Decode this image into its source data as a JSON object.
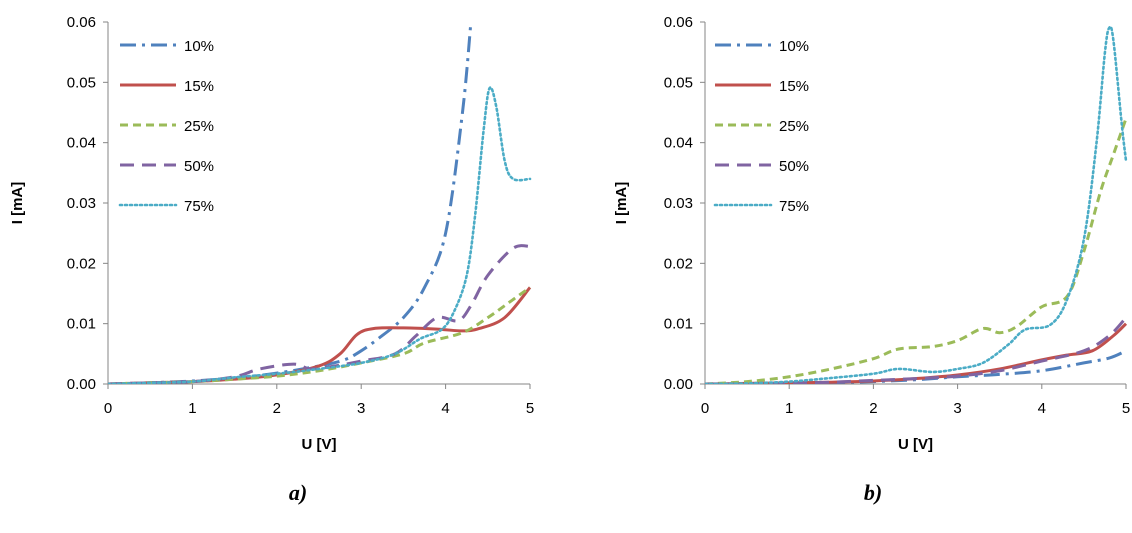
{
  "series_style": {
    "10%": {
      "color": "#4F81BD",
      "dash": "dashdot"
    },
    "15%": {
      "color": "#C0504D",
      "dash": "solid"
    },
    "25%": {
      "color": "#9BBB59",
      "dash": "dash"
    },
    "50%": {
      "color": "#8064A2",
      "dash": "longdash"
    },
    "75%": {
      "color": "#4BACC6",
      "dash": "dot"
    }
  },
  "chart_data": [
    {
      "type": "line",
      "panel_label": "a)",
      "xlabel": "U [V]",
      "ylabel": "I [mA]",
      "xlim": [
        0,
        5
      ],
      "ylim": [
        0,
        0.06
      ],
      "xticks": [
        "0",
        "1",
        "2",
        "3",
        "4",
        "5"
      ],
      "yticks": [
        "0.00",
        "0.01",
        "0.02",
        "0.03",
        "0.04",
        "0.05",
        "0.06"
      ],
      "grid": false,
      "legend": "top-left",
      "series": [
        {
          "name": "10%",
          "points": [
            [
              0,
              0
            ],
            [
              0.5,
              0.0002
            ],
            [
              1,
              0.0005
            ],
            [
              1.5,
              0.001
            ],
            [
              2,
              0.0018
            ],
            [
              2.5,
              0.003
            ],
            [
              2.8,
              0.004
            ],
            [
              3,
              0.0055
            ],
            [
              3.2,
              0.0075
            ],
            [
              3.5,
              0.011
            ],
            [
              3.75,
              0.016
            ],
            [
              4,
              0.025
            ],
            [
              4.2,
              0.045
            ],
            [
              4.3,
              0.06
            ]
          ]
        },
        {
          "name": "15%",
          "points": [
            [
              0,
              0
            ],
            [
              0.5,
              0.0002
            ],
            [
              1,
              0.0004
            ],
            [
              1.5,
              0.0008
            ],
            [
              2,
              0.0015
            ],
            [
              2.5,
              0.003
            ],
            [
              2.75,
              0.005
            ],
            [
              2.95,
              0.0082
            ],
            [
              3.15,
              0.0092
            ],
            [
              3.5,
              0.0093
            ],
            [
              3.9,
              0.0091
            ],
            [
              4.2,
              0.0088
            ],
            [
              4.4,
              0.0092
            ],
            [
              4.7,
              0.011
            ],
            [
              5,
              0.016
            ]
          ]
        },
        {
          "name": "25%",
          "points": [
            [
              0,
              0
            ],
            [
              0.5,
              0.0002
            ],
            [
              1,
              0.0004
            ],
            [
              1.5,
              0.0008
            ],
            [
              2,
              0.0013
            ],
            [
              2.5,
              0.0022
            ],
            [
              3,
              0.0035
            ],
            [
              3.5,
              0.005
            ],
            [
              3.75,
              0.0068
            ],
            [
              4.2,
              0.0085
            ],
            [
              4.5,
              0.011
            ],
            [
              4.8,
              0.014
            ],
            [
              5,
              0.016
            ]
          ]
        },
        {
          "name": "50%",
          "points": [
            [
              0,
              0
            ],
            [
              0.5,
              0.0002
            ],
            [
              1,
              0.0004
            ],
            [
              1.5,
              0.0012
            ],
            [
              1.8,
              0.0025
            ],
            [
              2.2,
              0.0033
            ],
            [
              2.4,
              0.0025
            ],
            [
              2.7,
              0.003
            ],
            [
              3,
              0.0038
            ],
            [
              3.4,
              0.005
            ],
            [
              3.65,
              0.008
            ],
            [
              3.9,
              0.011
            ],
            [
              4.15,
              0.0105
            ],
            [
              4.3,
              0.013
            ],
            [
              4.5,
              0.018
            ],
            [
              4.8,
              0.0225
            ],
            [
              5,
              0.0228
            ]
          ]
        },
        {
          "name": "75%",
          "points": [
            [
              0,
              0
            ],
            [
              0.5,
              0.0002
            ],
            [
              1,
              0.0004
            ],
            [
              1.5,
              0.0011
            ],
            [
              2,
              0.0017
            ],
            [
              2.5,
              0.0025
            ],
            [
              3,
              0.0035
            ],
            [
              3.4,
              0.005
            ],
            [
              3.7,
              0.0075
            ],
            [
              3.95,
              0.009
            ],
            [
              4.1,
              0.012
            ],
            [
              4.25,
              0.018
            ],
            [
              4.35,
              0.028
            ],
            [
              4.45,
              0.042
            ],
            [
              4.52,
              0.049
            ],
            [
              4.6,
              0.046
            ],
            [
              4.7,
              0.037
            ],
            [
              4.8,
              0.034
            ],
            [
              5,
              0.034
            ]
          ]
        }
      ]
    },
    {
      "type": "line",
      "panel_label": "b)",
      "xlabel": "U [V]",
      "ylabel": "I [mA]",
      "xlim": [
        0,
        5
      ],
      "ylim": [
        0,
        0.06
      ],
      "xticks": [
        "0",
        "1",
        "2",
        "3",
        "4",
        "5"
      ],
      "yticks": [
        "0.00",
        "0.01",
        "0.02",
        "0.03",
        "0.04",
        "0.05",
        "0.06"
      ],
      "grid": false,
      "legend": "top-left",
      "series": [
        {
          "name": "10%",
          "points": [
            [
              0,
              0
            ],
            [
              0.5,
              0
            ],
            [
              1,
              0.0001
            ],
            [
              1.5,
              0.0002
            ],
            [
              2,
              0.0004
            ],
            [
              2.5,
              0.0007
            ],
            [
              3,
              0.0012
            ],
            [
              3.5,
              0.0016
            ],
            [
              4,
              0.0022
            ],
            [
              4.5,
              0.0035
            ],
            [
              4.8,
              0.0043
            ],
            [
              5,
              0.0055
            ]
          ]
        },
        {
          "name": "15%",
          "points": [
            [
              0,
              0
            ],
            [
              0.5,
              0.0001
            ],
            [
              1,
              0.0002
            ],
            [
              1.5,
              0.0003
            ],
            [
              2,
              0.0005
            ],
            [
              2.5,
              0.0009
            ],
            [
              3,
              0.0015
            ],
            [
              3.5,
              0.0025
            ],
            [
              4,
              0.004
            ],
            [
              4.3,
              0.0048
            ],
            [
              4.6,
              0.0055
            ],
            [
              4.85,
              0.008
            ],
            [
              5,
              0.01
            ]
          ]
        },
        {
          "name": "25%",
          "points": [
            [
              0,
              0
            ],
            [
              0.5,
              0.0004
            ],
            [
              1,
              0.0012
            ],
            [
              1.5,
              0.0025
            ],
            [
              2,
              0.0042
            ],
            [
              2.3,
              0.0058
            ],
            [
              2.7,
              0.0062
            ],
            [
              3,
              0.0072
            ],
            [
              3.3,
              0.0092
            ],
            [
              3.5,
              0.0085
            ],
            [
              3.7,
              0.0095
            ],
            [
              4,
              0.0128
            ],
            [
              4.3,
              0.0145
            ],
            [
              4.5,
              0.022
            ],
            [
              4.7,
              0.032
            ],
            [
              4.85,
              0.038
            ],
            [
              5,
              0.044
            ]
          ]
        },
        {
          "name": "50%",
          "points": [
            [
              0,
              0
            ],
            [
              0.5,
              0
            ],
            [
              1,
              0.0001
            ],
            [
              1.5,
              0.0003
            ],
            [
              2,
              0.0006
            ],
            [
              2.5,
              0.0009
            ],
            [
              3,
              0.0013
            ],
            [
              3.5,
              0.0022
            ],
            [
              4,
              0.0038
            ],
            [
              4.5,
              0.0055
            ],
            [
              4.8,
              0.008
            ],
            [
              5,
              0.011
            ]
          ]
        },
        {
          "name": "75%",
          "points": [
            [
              0,
              0
            ],
            [
              0.5,
              0.0001
            ],
            [
              1,
              0.0004
            ],
            [
              1.5,
              0.001
            ],
            [
              2,
              0.0017
            ],
            [
              2.3,
              0.0025
            ],
            [
              2.7,
              0.002
            ],
            [
              3,
              0.0025
            ],
            [
              3.3,
              0.0035
            ],
            [
              3.6,
              0.0065
            ],
            [
              3.8,
              0.009
            ],
            [
              4.1,
              0.0098
            ],
            [
              4.3,
              0.014
            ],
            [
              4.5,
              0.024
            ],
            [
              4.65,
              0.04
            ],
            [
              4.75,
              0.055
            ],
            [
              4.8,
              0.059
            ],
            [
              4.85,
              0.057
            ],
            [
              4.95,
              0.043
            ],
            [
              5,
              0.037
            ]
          ]
        }
      ]
    }
  ]
}
